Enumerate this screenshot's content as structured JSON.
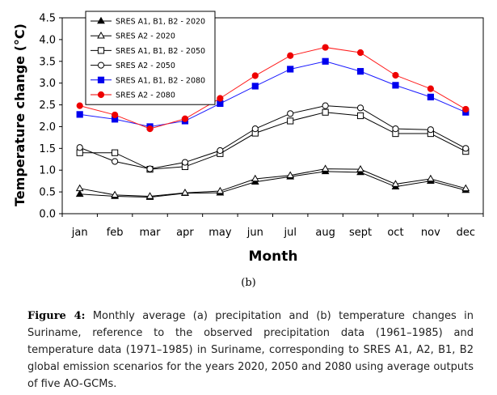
{
  "chart_data": {
    "type": "line",
    "title": "",
    "xlabel": "Month",
    "ylabel": "Temperature change (°C)",
    "categories": [
      "jan",
      "feb",
      "mar",
      "apr",
      "may",
      "jun",
      "jul",
      "aug",
      "sept",
      "oct",
      "nov",
      "dec"
    ],
    "ylim": [
      0,
      4.5
    ],
    "yticks": [
      "0.0",
      "0.5",
      "1.0",
      "1.5",
      "2.0",
      "2.5",
      "3.0",
      "3.5",
      "4.0",
      "4.5"
    ],
    "grid": false,
    "legend_position": "top-left",
    "series": [
      {
        "name": "SRES A1, B1, B2 - 2020",
        "marker": "triangle-filled",
        "color": "#000000",
        "values": [
          0.45,
          0.4,
          0.38,
          0.47,
          0.48,
          0.73,
          0.85,
          0.97,
          0.95,
          0.62,
          0.75,
          0.54
        ]
      },
      {
        "name": "SRES A2 - 2020",
        "marker": "triangle-open",
        "color": "#000000",
        "values": [
          0.58,
          0.43,
          0.4,
          0.48,
          0.52,
          0.8,
          0.88,
          1.03,
          1.02,
          0.68,
          0.8,
          0.58
        ]
      },
      {
        "name": "SRES A1, B1, B2 - 2050",
        "marker": "square-open",
        "color": "#000000",
        "values": [
          1.4,
          1.4,
          1.02,
          1.08,
          1.38,
          1.85,
          2.13,
          2.33,
          2.25,
          1.84,
          1.84,
          1.43
        ]
      },
      {
        "name": "SRES A2 - 2050",
        "marker": "circle-open",
        "color": "#000000",
        "values": [
          1.52,
          1.2,
          1.03,
          1.18,
          1.45,
          1.95,
          2.3,
          2.48,
          2.43,
          1.95,
          1.93,
          1.5
        ]
      },
      {
        "name": "SRES A1, B1, B2 - 2080",
        "marker": "square-filled",
        "color": "#0000ee",
        "values": [
          2.28,
          2.17,
          2.0,
          2.13,
          2.53,
          2.93,
          3.32,
          3.5,
          3.27,
          2.95,
          2.68,
          2.33
        ]
      },
      {
        "name": "SRES A2 - 2080",
        "marker": "circle-filled",
        "color": "#ee0000",
        "values": [
          2.48,
          2.27,
          1.95,
          2.18,
          2.65,
          3.17,
          3.63,
          3.82,
          3.7,
          3.18,
          2.87,
          2.4
        ]
      }
    ]
  },
  "sublabel": "(b)",
  "caption": {
    "label": "Figure 4:",
    "text": "Monthly average (a) precipitation and (b) temperature changes in Suriname, reference to the observed precipitation data (1961–1985) and temperature data (1971–1985) in Suriname, corresponding to SRES A1, A2, B1, B2 global emission scenarios for the years 2020, 2050 and 2080 using average outputs of five AO-GCMs."
  }
}
